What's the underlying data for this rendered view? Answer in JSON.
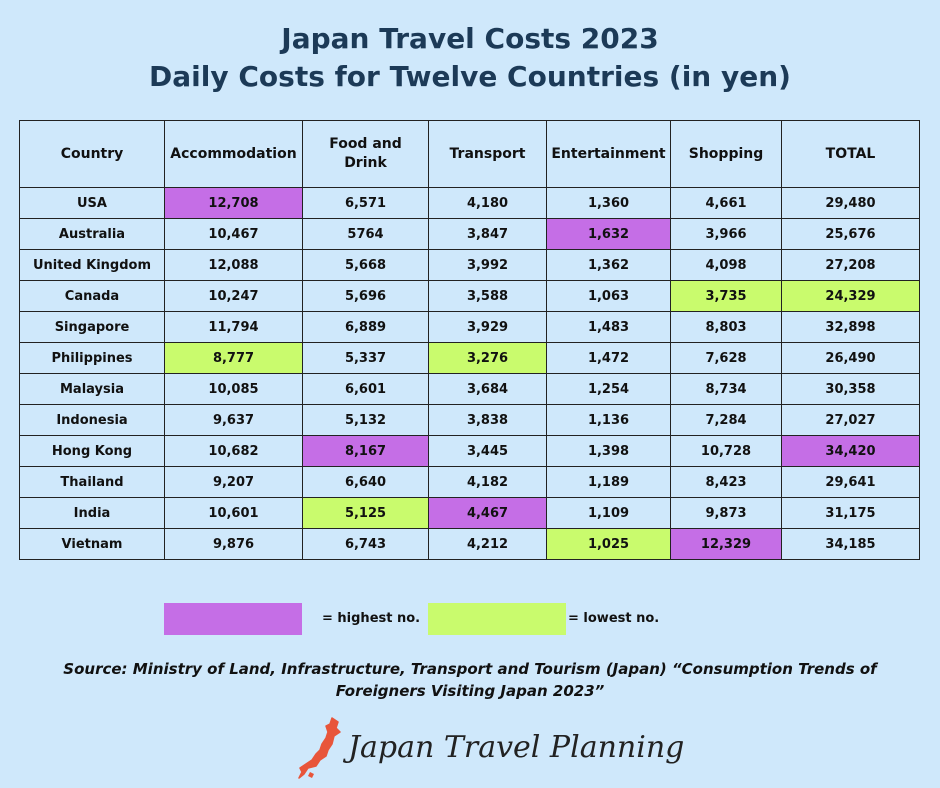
{
  "title_line1": "Japan Travel Costs 2023",
  "title_line2": "Daily Costs for Twelve Countries (in yen)",
  "chart_data": {
    "type": "table",
    "columns": [
      "Country",
      "Accommodation",
      "Food and Drink",
      "Transport",
      "Entertainment",
      "Shopping",
      "TOTAL"
    ],
    "rows": [
      {
        "cells": [
          "USA",
          "12,708",
          "6,571",
          "4,180",
          "1,360",
          "4,661",
          "29,480"
        ],
        "hl": [
          "",
          "hi",
          "",
          "",
          "",
          "",
          ""
        ]
      },
      {
        "cells": [
          "Australia",
          "10,467",
          "5764",
          "3,847",
          "1,632",
          "3,966",
          "25,676"
        ],
        "hl": [
          "",
          "",
          "",
          "",
          "hi",
          "",
          ""
        ]
      },
      {
        "cells": [
          "United Kingdom",
          "12,088",
          "5,668",
          "3,992",
          "1,362",
          "4,098",
          "27,208"
        ],
        "hl": [
          "",
          "",
          "",
          "",
          "",
          "",
          ""
        ]
      },
      {
        "cells": [
          "Canada",
          "10,247",
          "5,696",
          "3,588",
          "1,063",
          "3,735",
          "24,329"
        ],
        "hl": [
          "",
          "",
          "",
          "",
          "",
          "lo",
          "lo"
        ]
      },
      {
        "cells": [
          "Singapore",
          "11,794",
          "6,889",
          "3,929",
          "1,483",
          "8,803",
          "32,898"
        ],
        "hl": [
          "",
          "",
          "",
          "",
          "",
          "",
          ""
        ]
      },
      {
        "cells": [
          "Philippines",
          "8,777",
          "5,337",
          "3,276",
          "1,472",
          "7,628",
          "26,490"
        ],
        "hl": [
          "",
          "lo",
          "",
          "lo",
          "",
          "",
          ""
        ]
      },
      {
        "cells": [
          "Malaysia",
          "10,085",
          "6,601",
          "3,684",
          "1,254",
          "8,734",
          "30,358"
        ],
        "hl": [
          "",
          "",
          "",
          "",
          "",
          "",
          ""
        ]
      },
      {
        "cells": [
          "Indonesia",
          "9,637",
          "5,132",
          "3,838",
          "1,136",
          "7,284",
          "27,027"
        ],
        "hl": [
          "",
          "",
          "",
          "",
          "",
          "",
          ""
        ]
      },
      {
        "cells": [
          "Hong Kong",
          "10,682",
          "8,167",
          "3,445",
          "1,398",
          "10,728",
          "34,420"
        ],
        "hl": [
          "",
          "",
          "hi",
          "",
          "",
          "",
          "hi"
        ]
      },
      {
        "cells": [
          "Thailand",
          "9,207",
          "6,640",
          "4,182",
          "1,189",
          "8,423",
          "29,641"
        ],
        "hl": [
          "",
          "",
          "",
          "",
          "",
          "",
          ""
        ]
      },
      {
        "cells": [
          "India",
          "10,601",
          "5,125",
          "4,467",
          "1,109",
          "9,873",
          "31,175"
        ],
        "hl": [
          "",
          "",
          "lo",
          "hi",
          "",
          "",
          ""
        ]
      },
      {
        "cells": [
          "Vietnam",
          "9,876",
          "6,743",
          "4,212",
          "1,025",
          "12,329",
          "34,185"
        ],
        "hl": [
          "",
          "",
          "",
          "",
          "lo",
          "hi",
          ""
        ]
      }
    ]
  },
  "legend": {
    "highest_label": "= highest no.",
    "lowest_label": "= lowest no.",
    "highest_color": "#c56ee6",
    "lowest_color": "#c9fb6d"
  },
  "source": "Source: Ministry of Land, Infrastructure, Transport and Tourism (Japan) “Consumption Trends of Foreigners Visiting Japan 2023”",
  "brand": {
    "name": "Japan Travel Planning",
    "icon": "japan-map-icon",
    "icon_color": "#e8553a"
  }
}
